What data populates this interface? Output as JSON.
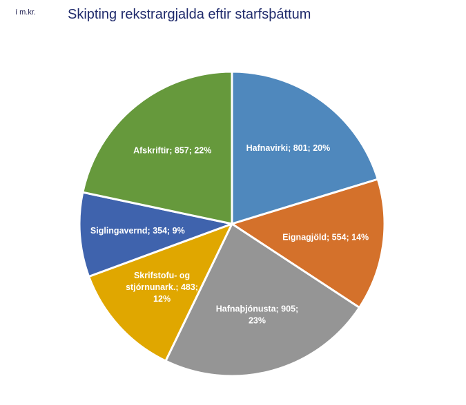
{
  "unit_note": "í m.kr.",
  "chart_data": {
    "type": "pie",
    "title": "Skipting rekstrargjalda eftir starfsþáttum",
    "slices": [
      {
        "name": "Hafnavirki",
        "value": 801,
        "percent": "20%",
        "label_lines": [
          "Hafnavirki; 801; 20%"
        ],
        "color": "#4f88bd"
      },
      {
        "name": "Eignagjöld",
        "value": 554,
        "percent": "14%",
        "label_lines": [
          "Eignagjöld; 554; 14%"
        ],
        "color": "#d4712b"
      },
      {
        "name": "Hafnaþjónusta",
        "value": 905,
        "percent": "23%",
        "label_lines": [
          "Hafnaþjónusta; 905;",
          "23%"
        ],
        "color": "#959595"
      },
      {
        "name": "Skrifstofu- og stjórnunark.",
        "value": 483,
        "percent": "12%",
        "label_lines": [
          "Skrifstofu- og",
          "stjórnunark.; 483;",
          "12%"
        ],
        "color": "#e0a700"
      },
      {
        "name": "Siglingavernd",
        "value": 354,
        "percent": "9%",
        "label_lines": [
          "Siglingavernd; 354; 9%"
        ],
        "color": "#3f63ad"
      },
      {
        "name": "Afskriftir",
        "value": 857,
        "percent": "22%",
        "label_lines": [
          "Afskriftir; 857; 22%"
        ],
        "color": "#66993c"
      }
    ]
  }
}
